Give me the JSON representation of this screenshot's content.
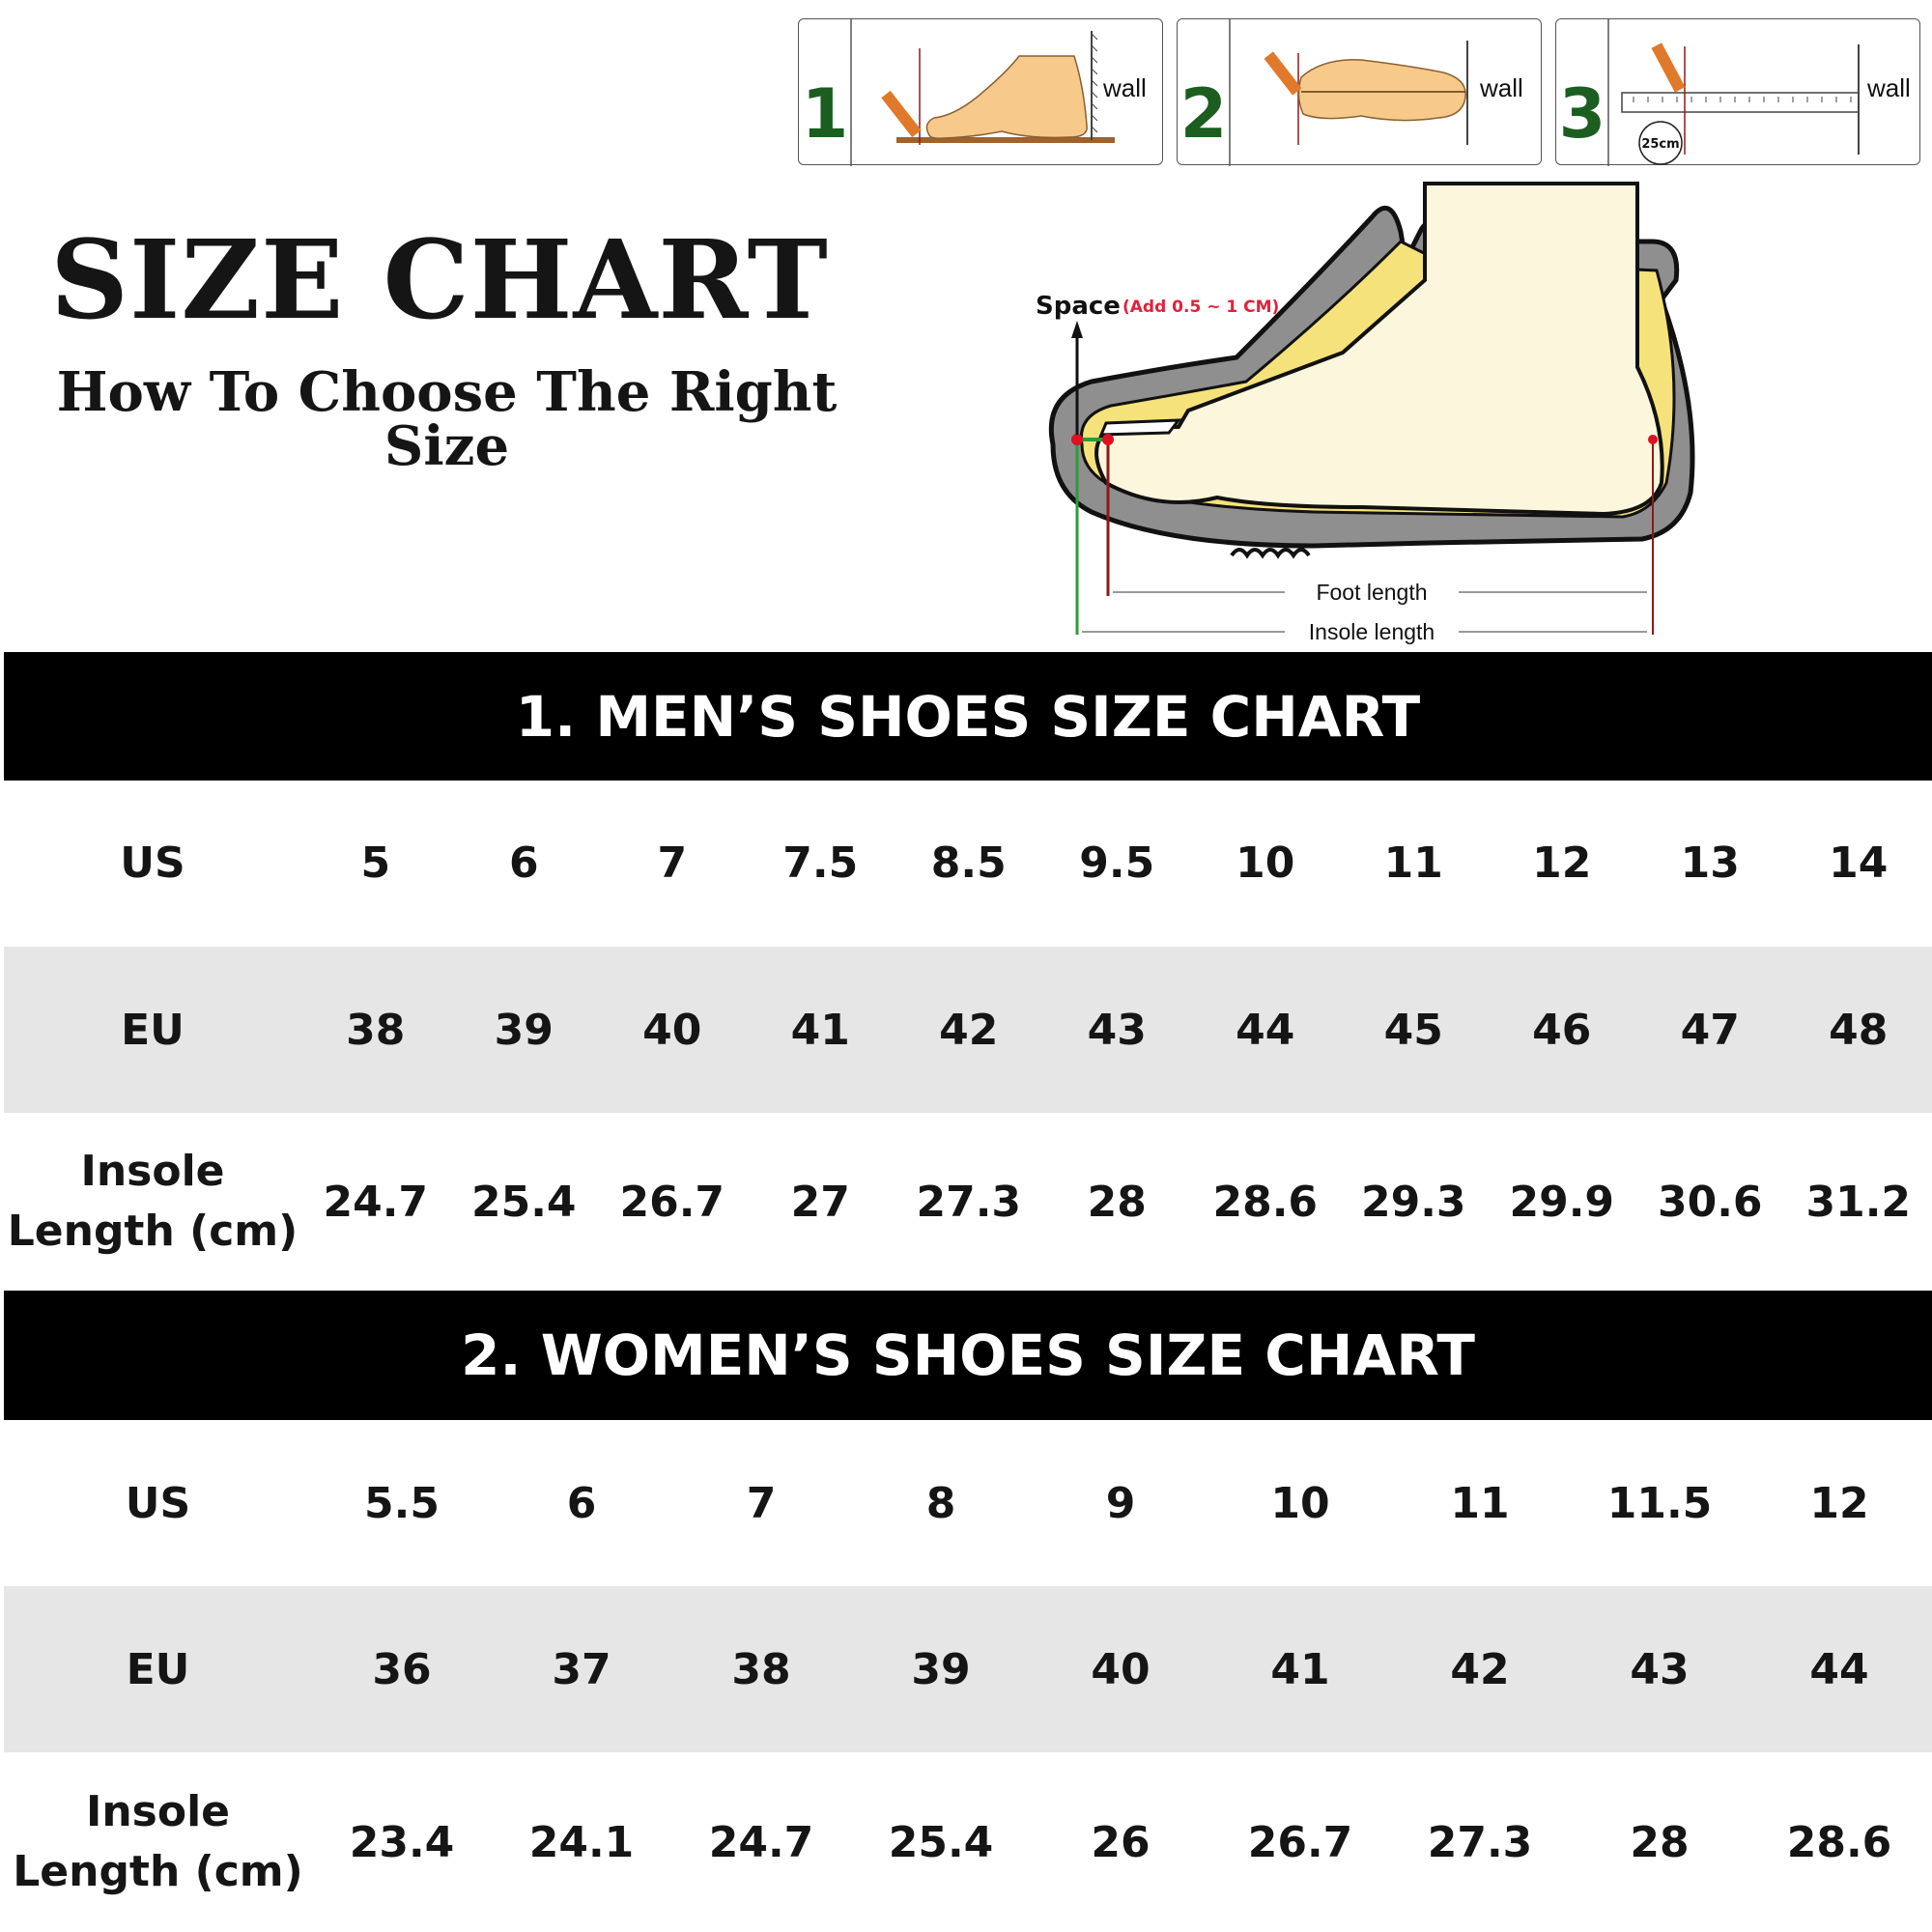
{
  "header": {
    "title": "SIZE CHART",
    "subtitle": "How To Choose The Right Size"
  },
  "steps": [
    {
      "number": "1",
      "wall_label": "wall"
    },
    {
      "number": "2",
      "wall_label": "wall"
    },
    {
      "number": "3",
      "wall_label": "wall",
      "measure_label": "25cm"
    }
  ],
  "diagram": {
    "space_label": "Space",
    "space_note": "(Add 0.5 ~ 1 CM)",
    "foot_length_label": "Foot length",
    "insole_length_label": "Insole length"
  },
  "colors": {
    "bar": "#000000",
    "row_alt": "#e6e6e6",
    "step_number": "#1b5e20",
    "space_note": "#e0223a"
  },
  "men": {
    "heading": "1. MEN’S SHOES SIZE CHART",
    "rows": [
      {
        "label": "US",
        "values": [
          "5",
          "6",
          "7",
          "7.5",
          "8.5",
          "9.5",
          "10",
          "11",
          "12",
          "13",
          "14"
        ]
      },
      {
        "label": "EU",
        "values": [
          "38",
          "39",
          "40",
          "41",
          "42",
          "43",
          "44",
          "45",
          "46",
          "47",
          "48"
        ]
      },
      {
        "label_line1": "Insole",
        "label_line2": "Length (cm)",
        "values": [
          "24.7",
          "25.4",
          "26.7",
          "27",
          "27.3",
          "28",
          "28.6",
          "29.3",
          "29.9",
          "30.6",
          "31.2"
        ]
      }
    ]
  },
  "women": {
    "heading": "2. WOMEN’S SHOES SIZE CHART",
    "rows": [
      {
        "label": "US",
        "values": [
          "5.5",
          "6",
          "7",
          "8",
          "9",
          "10",
          "11",
          "11.5",
          "12"
        ]
      },
      {
        "label": "EU",
        "values": [
          "36",
          "37",
          "38",
          "39",
          "40",
          "41",
          "42",
          "43",
          "44"
        ]
      },
      {
        "label_line1": "Insole",
        "label_line2": "Length (cm)",
        "values": [
          "23.4",
          "24.1",
          "24.7",
          "25.4",
          "26",
          "26.7",
          "27.3",
          "28",
          "28.6"
        ]
      }
    ]
  }
}
